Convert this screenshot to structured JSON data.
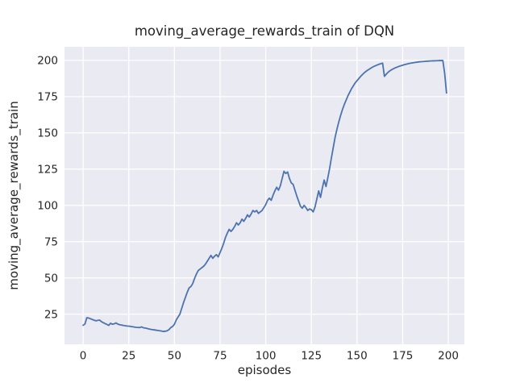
{
  "chart_data": {
    "type": "line",
    "title": "moving_average_rewards_train of DQN",
    "xlabel": "episodes",
    "ylabel": "moving_average_rewards_train",
    "x_ticks": [
      0,
      25,
      50,
      75,
      100,
      125,
      150,
      175,
      200
    ],
    "y_ticks": [
      25,
      50,
      75,
      100,
      125,
      150,
      175,
      200
    ],
    "xlim": [
      -10.2,
      208.8
    ],
    "ylim": [
      4.2,
      209.4
    ],
    "grid": true,
    "legend_position": "none",
    "style": {
      "plot_background": "#EAEAF2",
      "figure_background": "#FFFFFF",
      "grid_color": "#FFFFFF",
      "line_color": "#4C72B0",
      "text_color": "#262626",
      "line_width": 1.8
    },
    "series": [
      {
        "name": "DQN",
        "x_start": 0,
        "x_step": 1,
        "values": [
          17.3,
          18.2,
          22.5,
          22.3,
          21.8,
          21.3,
          20.8,
          20.4,
          20.7,
          20.9,
          19.8,
          19.1,
          18.5,
          17.9,
          17.2,
          18.7,
          18.0,
          18.3,
          18.9,
          18.1,
          17.7,
          17.5,
          17.2,
          17.0,
          16.8,
          16.7,
          16.5,
          16.3,
          16.1,
          15.9,
          15.8,
          15.7,
          16.2,
          15.6,
          15.4,
          15.1,
          14.8,
          14.5,
          14.3,
          14.1,
          13.9,
          13.7,
          13.5,
          13.3,
          13.0,
          13.2,
          13.5,
          14.3,
          15.7,
          16.5,
          18.0,
          21.0,
          23.0,
          25.0,
          29.0,
          33.0,
          36.5,
          40.0,
          43.0,
          44.0,
          46.0,
          49.5,
          52.5,
          55.0,
          56.0,
          57.0,
          58.0,
          59.5,
          61.5,
          63.5,
          65.5,
          63.5,
          65.0,
          66.0,
          64.5,
          67.5,
          70.5,
          74.0,
          78.0,
          81.0,
          83.5,
          82.0,
          83.5,
          85.5,
          88.0,
          86.5,
          88.0,
          90.5,
          89.0,
          91.0,
          93.5,
          92.0,
          94.0,
          96.5,
          95.5,
          96.5,
          94.5,
          95.5,
          96.5,
          98.5,
          100.5,
          103.5,
          105.0,
          103.5,
          107.0,
          110.0,
          112.5,
          110.5,
          113.5,
          118.5,
          123.5,
          122.0,
          123.0,
          118.5,
          115.5,
          114.5,
          110.5,
          106.5,
          103.0,
          99.5,
          98.0,
          100.0,
          98.5,
          96.5,
          97.5,
          97.0,
          95.5,
          99.0,
          104.5,
          110.0,
          105.5,
          112.0,
          117.5,
          113.0,
          119.0,
          125.5,
          133.0,
          140.0,
          147.0,
          152.5,
          157.5,
          162.0,
          166.0,
          169.5,
          172.5,
          175.5,
          178.0,
          180.5,
          182.5,
          184.5,
          186.0,
          187.5,
          189.0,
          190.3,
          191.5,
          192.5,
          193.4,
          194.2,
          195.0,
          195.7,
          196.3,
          196.8,
          197.3,
          197.7,
          198.1,
          189.0,
          190.5,
          191.8,
          192.8,
          193.6,
          194.3,
          194.9,
          195.4,
          195.9,
          196.3,
          196.7,
          197.1,
          197.4,
          197.7,
          198.0,
          198.2,
          198.4,
          198.6,
          198.8,
          199.0,
          199.1,
          199.2,
          199.3,
          199.4,
          199.5,
          199.6,
          199.65,
          199.7,
          199.75,
          199.8,
          199.85,
          199.9,
          199.9,
          191.0,
          177.5
        ]
      }
    ]
  }
}
